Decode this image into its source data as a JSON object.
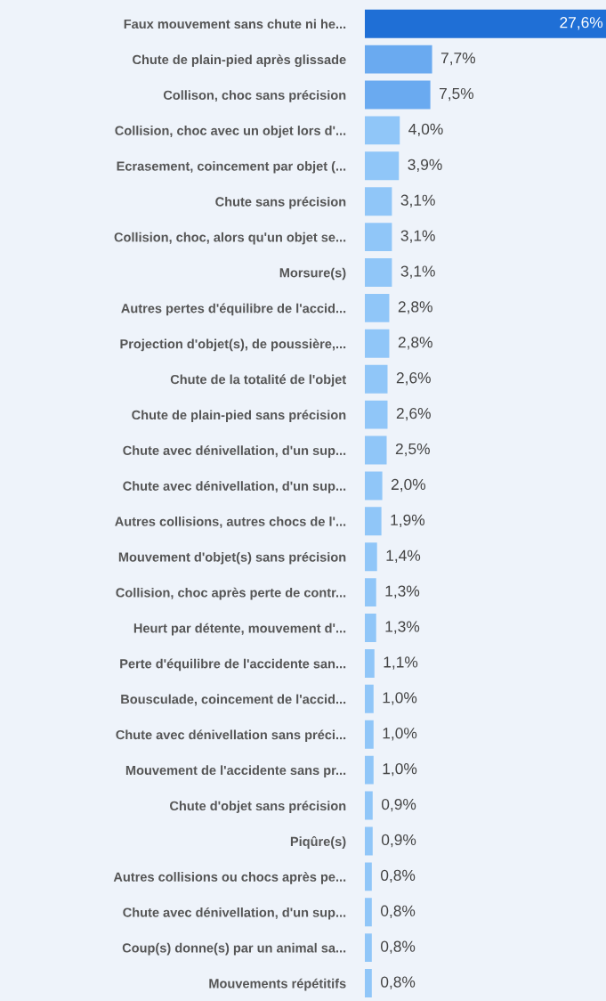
{
  "chart_data": {
    "type": "bar",
    "orientation": "horizontal",
    "categories": [
      "Faux mouvement sans chute ni he...",
      "Chute de plain-pied après glissade",
      "Collison, choc sans précision",
      "Collision, choc avec un objet lors d'...",
      "Ecrasement, coincement par objet (...",
      "Chute sans précision",
      "Collision, choc, alors qu'un objet se...",
      "Morsure(s)",
      "Autres pertes d'équilibre de l'accid...",
      "Projection d'objet(s), de poussière,...",
      "Chute de la totalité de l'objet",
      "Chute de plain-pied sans précision",
      "Chute avec dénivellation, d'un sup...",
      "Chute avec dénivellation, d'un sup...",
      "Autres collisions, autres chocs de l'...",
      "Mouvement d'objet(s) sans précision",
      "Collision, choc après perte de contr...",
      "Heurt par détente, mouvement d'...",
      "Perte d'équilibre de l'accidente san...",
      "Bousculade, coincement de l'accid...",
      "Chute avec dénivellation sans préci...",
      "Mouvement de l'accidente sans pr...",
      "Chute d'objet sans précision",
      "Piqûre(s)",
      "Autres collisions ou chocs après pe...",
      "Chute avec dénivellation, d'un sup...",
      "Coup(s) donne(s) par un animal sa...",
      "Mouvements répétitifs"
    ],
    "values": [
      27.6,
      7.7,
      7.5,
      4.0,
      3.9,
      3.1,
      3.1,
      3.1,
      2.8,
      2.8,
      2.6,
      2.6,
      2.5,
      2.0,
      1.9,
      1.4,
      1.3,
      1.3,
      1.1,
      1.0,
      1.0,
      1.0,
      0.9,
      0.9,
      0.8,
      0.8,
      0.8,
      0.8
    ],
    "value_labels": [
      "27,6%",
      "7,7%",
      "7,5%",
      "4,0%",
      "3,9%",
      "3,1%",
      "3,1%",
      "3,1%",
      "2,8%",
      "2,8%",
      "2,6%",
      "2,6%",
      "2,5%",
      "2,0%",
      "1,9%",
      "1,4%",
      "1,3%",
      "1,3%",
      "1,1%",
      "1,0%",
      "1,0%",
      "1,0%",
      "0,9%",
      "0,9%",
      "0,8%",
      "0,8%",
      "0,8%",
      "0,8%"
    ],
    "colors": [
      "#1f6fd6",
      "#6aaaf0",
      "#6aaaf0",
      "#90c6f8",
      "#90c6f8",
      "#90c6f8",
      "#90c6f8",
      "#90c6f8",
      "#90c6f8",
      "#90c6f8",
      "#90c6f8",
      "#90c6f8",
      "#90c6f8",
      "#90c6f8",
      "#90c6f8",
      "#90c6f8",
      "#90c6f8",
      "#90c6f8",
      "#90c6f8",
      "#90c6f8",
      "#90c6f8",
      "#90c6f8",
      "#90c6f8",
      "#90c6f8",
      "#90c6f8",
      "#90c6f8",
      "#90c6f8",
      "#90c6f8"
    ],
    "grid": false,
    "legend": false
  }
}
